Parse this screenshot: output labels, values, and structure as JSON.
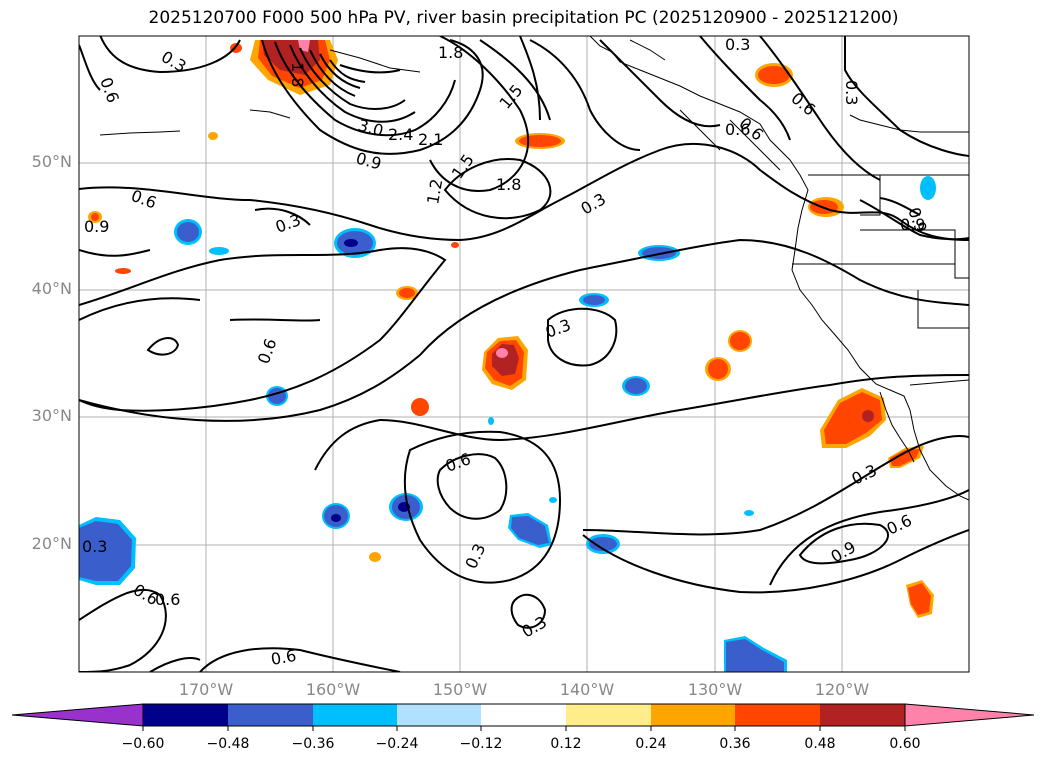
{
  "title": "2025120700 F000 500 hPa PV, river basin precipitation PC (2025120900 - 2025121200)",
  "map": {
    "lat_labels": [
      "50°N",
      "40°N",
      "30°N",
      "20°N"
    ],
    "lon_labels": [
      "170°W",
      "160°W",
      "150°W",
      "140°W",
      "130°W",
      "120°W"
    ],
    "contour_labels": [
      "0.3",
      "0.6",
      "1.8",
      "1.8",
      "1.5",
      "3.0",
      "2.4",
      "2.1",
      "0.9",
      "1.2",
      "1.5",
      "1.8",
      "0.3",
      "0.6",
      "0.3",
      "0.6",
      "0.9",
      "0.6",
      "0.3",
      "0.9",
      "0.3",
      "0.6",
      "0.6",
      "0.3",
      "0.3",
      "0.6",
      "0.9",
      "0.6",
      "0.3",
      "0.6",
      "0.3",
      "0.6",
      "0.3",
      "0.6",
      "0.9"
    ]
  },
  "colorbar": {
    "ticks": [
      "−0.60",
      "−0.48",
      "−0.36",
      "−0.24",
      "−0.12",
      "0.12",
      "0.24",
      "0.36",
      "0.48",
      "0.60"
    ],
    "colors": [
      "#9932cc",
      "#00008b",
      "#3a5fcd",
      "#00bfff",
      "#b0e2ff",
      "#ffffff",
      "#ffec8b",
      "#ffa500",
      "#ff4500",
      "#b22222",
      "#ff82ab"
    ]
  }
}
